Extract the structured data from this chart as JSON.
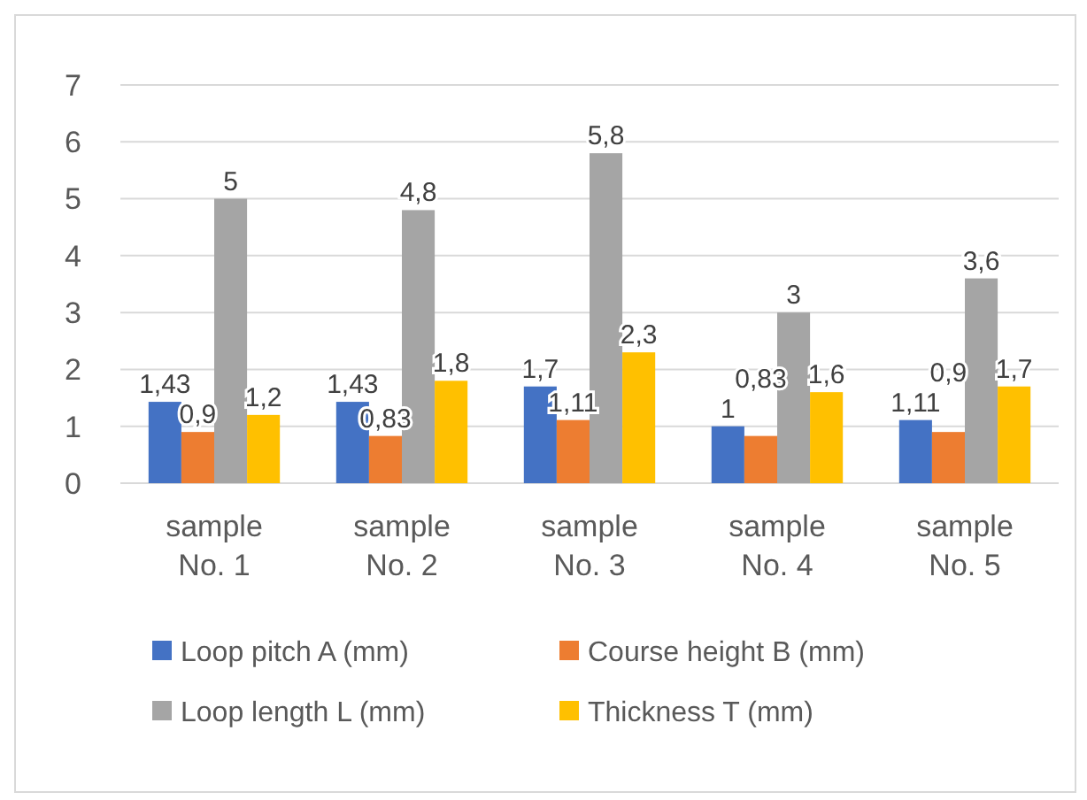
{
  "chart_data": {
    "type": "bar",
    "categories": [
      "sample No. 1",
      "sample No. 2",
      "sample No. 3",
      "sample No. 4",
      "sample No. 5"
    ],
    "series": [
      {
        "name": "Loop pitch A (mm)",
        "color": "#4472c4",
        "values": [
          1.43,
          1.43,
          1.7,
          1,
          1.11
        ],
        "value_labels": [
          "1,43",
          "1,43",
          "1,7",
          "1",
          "1,11"
        ]
      },
      {
        "name": "Course height B (mm)",
        "color": "#ed7d31",
        "values": [
          0.9,
          0.83,
          1.11,
          0.83,
          0.9
        ],
        "value_labels": [
          "0,9",
          "0,83",
          "1,11",
          "0,83",
          "0,9"
        ]
      },
      {
        "name": "Loop length L (mm)",
        "color": "#a5a5a5",
        "values": [
          5,
          4.8,
          5.8,
          3,
          3.6
        ],
        "value_labels": [
          "5",
          "4,8",
          "5,8",
          "3",
          "3,6"
        ]
      },
      {
        "name": "Thickness T (mm)",
        "color": "#ffc000",
        "values": [
          1.2,
          1.8,
          2.3,
          1.6,
          1.7
        ],
        "value_labels": [
          "1,2",
          "1,8",
          "2,3",
          "1,6",
          "1,7"
        ]
      }
    ],
    "ylim": [
      0,
      7
    ],
    "yticks": [
      0,
      1,
      2,
      3,
      4,
      5,
      6,
      7
    ],
    "grid": "y",
    "legend": "bottom"
  }
}
